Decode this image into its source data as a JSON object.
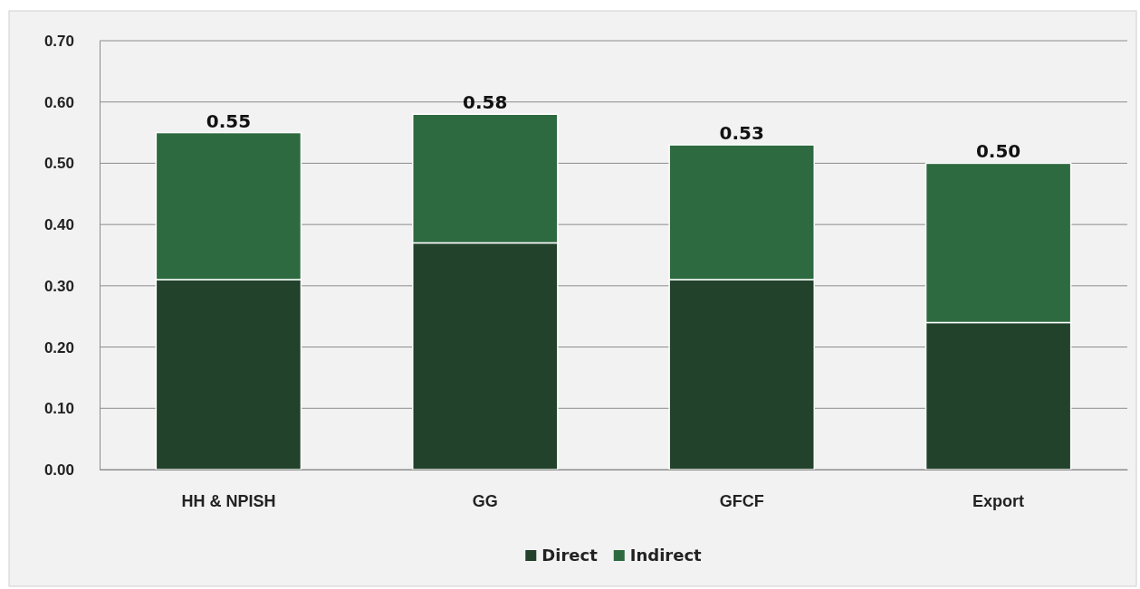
{
  "chart_data": {
    "type": "bar",
    "stacked": true,
    "categories": [
      "HH & NPISH",
      "GG",
      "GFCF",
      "Export"
    ],
    "series": [
      {
        "name": "Direct",
        "color": "#22422b",
        "values": [
          0.31,
          0.37,
          0.31,
          0.24
        ]
      },
      {
        "name": "Indirect",
        "color": "#2e6a40",
        "values": [
          0.24,
          0.21,
          0.22,
          0.26
        ]
      }
    ],
    "totals": [
      "0.55",
      "0.58",
      "0.53",
      "0.50"
    ],
    "ylim": [
      0,
      0.7
    ],
    "yticks": [
      {
        "value": 0,
        "label": "0.00"
      },
      {
        "value": 0.1,
        "label": "0.10"
      },
      {
        "value": 0.2,
        "label": "0.20"
      },
      {
        "value": 0.3,
        "label": "0.30"
      },
      {
        "value": 0.4,
        "label": "0.40"
      },
      {
        "value": 0.5,
        "label": "0.50"
      },
      {
        "value": 0.6,
        "label": "0.60"
      },
      {
        "value": 0.7,
        "label": "0.70"
      }
    ],
    "grid": "y",
    "legend": "bottom"
  }
}
